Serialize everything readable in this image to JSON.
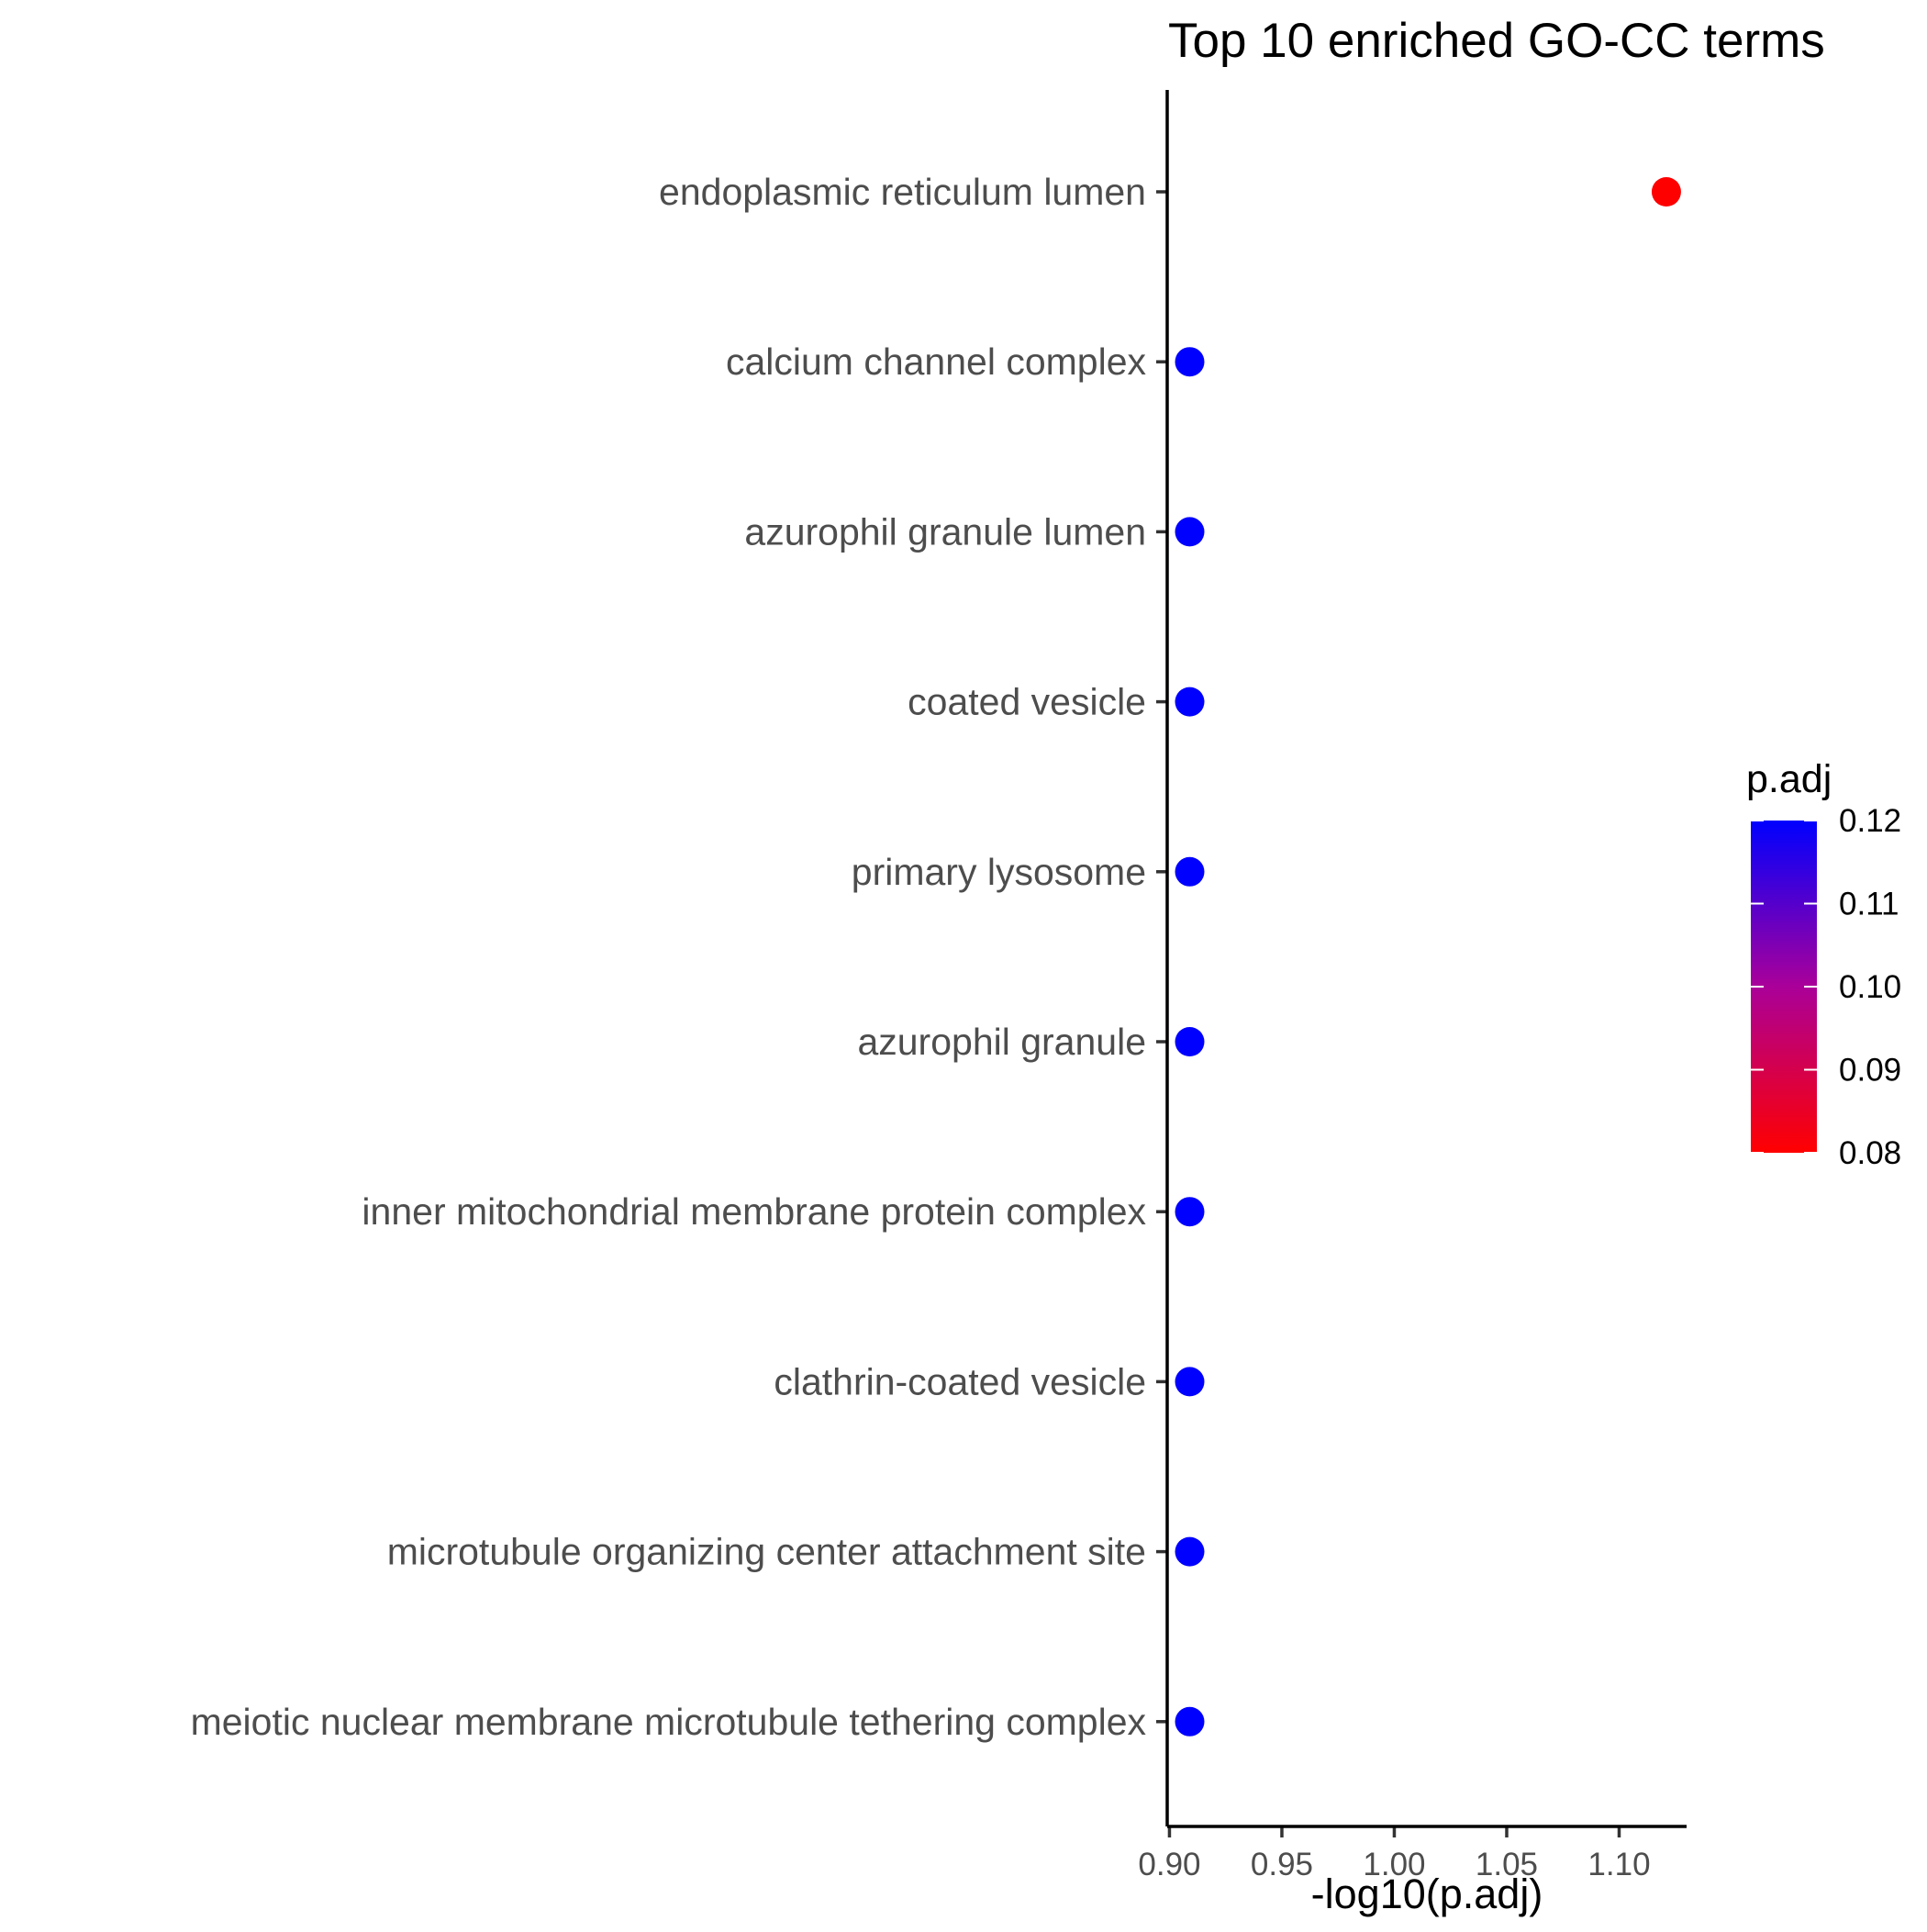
{
  "chart_data": {
    "type": "scatter",
    "title": "Top  10  enriched GO-CC terms",
    "xlabel": "-log10(p.adj)",
    "ylabel": "",
    "xlim": [
      0.899,
      1.13
    ],
    "x_ticks": [
      0.9,
      0.95,
      1.0,
      1.05,
      1.1
    ],
    "x_tick_labels": [
      "0.90",
      "0.95",
      "1.00",
      "1.05",
      "1.10"
    ],
    "categories": [
      "endoplasmic reticulum lumen",
      "calcium channel complex",
      "azurophil granule lumen",
      "coated vesicle",
      "primary lysosome",
      "azurophil granule",
      "inner mitochondrial membrane protein complex",
      "clathrin-coated vesicle",
      "microtubule organizing center attachment site",
      "meiotic nuclear membrane microtubule tethering complex"
    ],
    "values": [
      1.121,
      0.909,
      0.909,
      0.909,
      0.909,
      0.909,
      0.909,
      0.909,
      0.909,
      0.909
    ],
    "color_values": [
      0.0757,
      0.1234,
      0.1234,
      0.1234,
      0.1234,
      0.1234,
      0.1234,
      0.1234,
      0.1234,
      0.1234
    ],
    "legend": {
      "title": "p.adj",
      "placement": "right",
      "ticks": [
        0.12,
        0.11,
        0.1,
        0.09,
        0.08
      ],
      "tick_labels": [
        "0.12",
        "0.11",
        "0.10",
        "0.09",
        "0.08"
      ],
      "range": [
        0.08,
        0.12
      ],
      "low_color": "#FF0000",
      "high_color": "#0000FF"
    },
    "grid": false
  }
}
